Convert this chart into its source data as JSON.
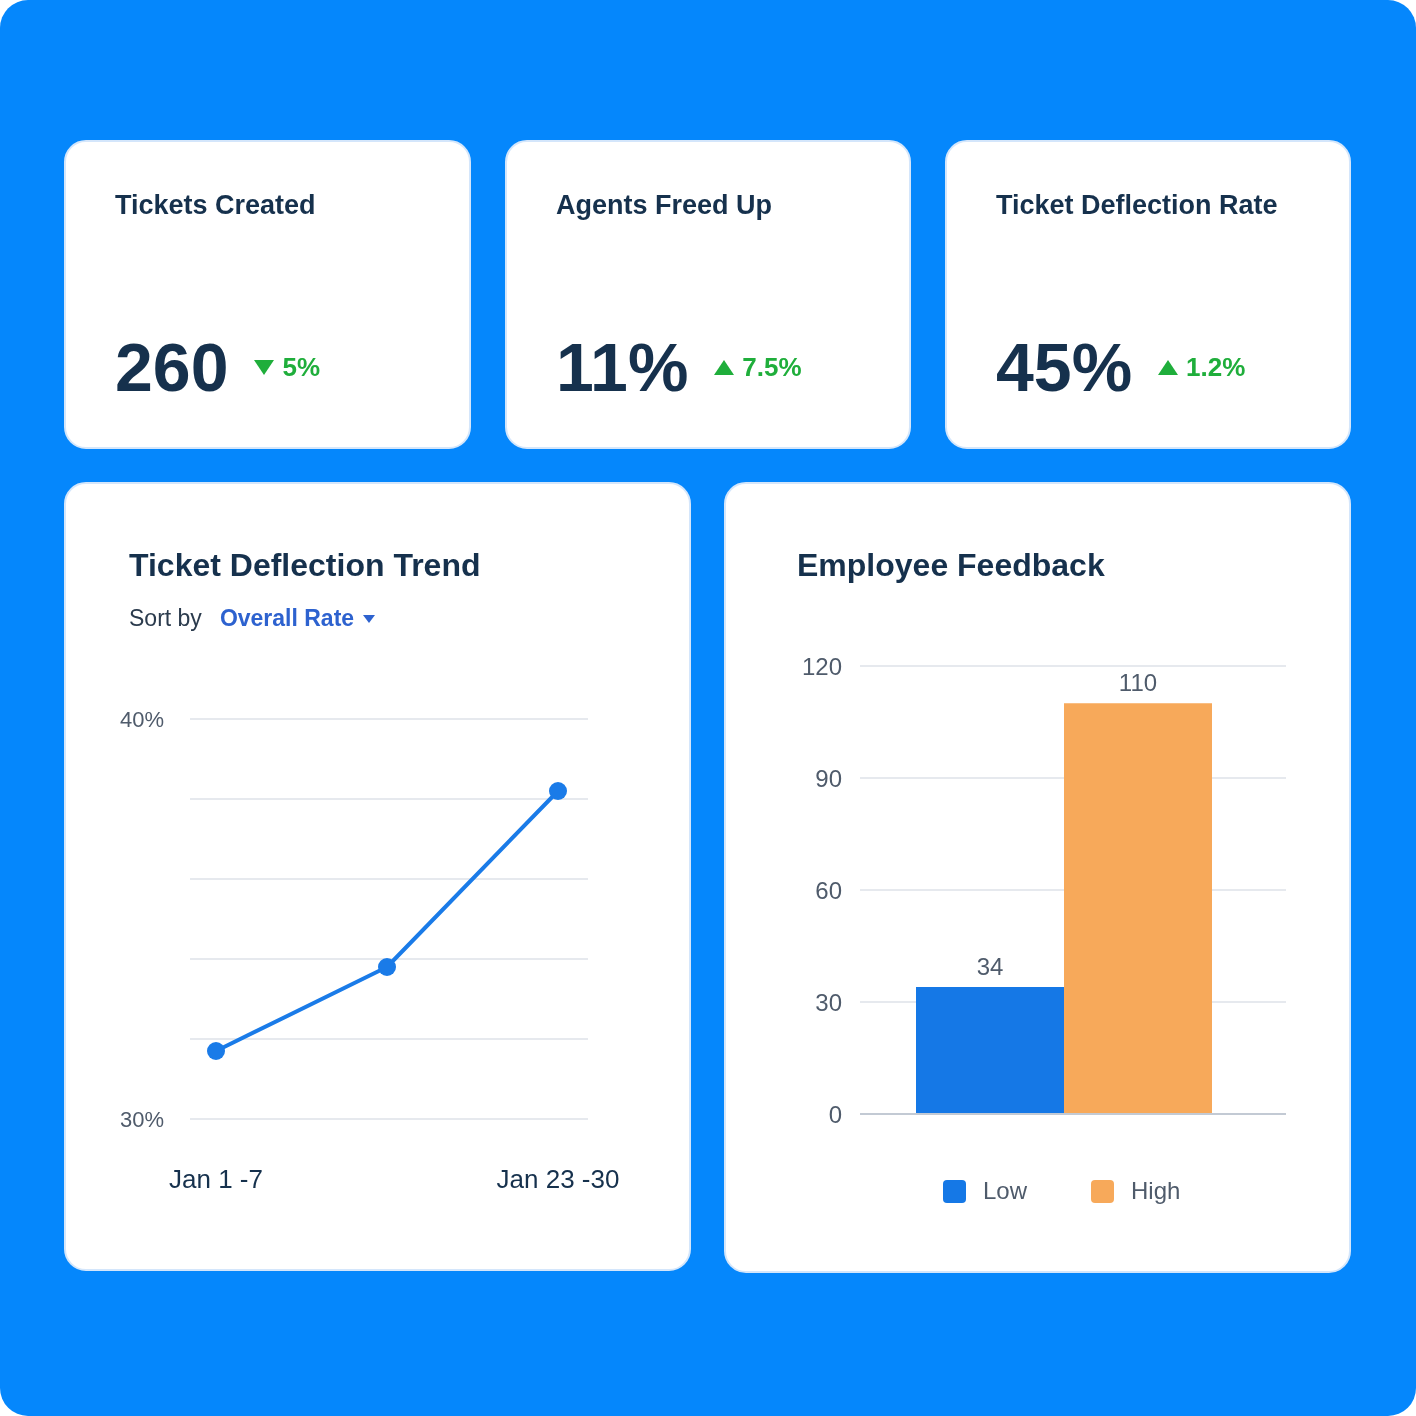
{
  "chart_data": [
    {
      "type": "other",
      "title": "Tickets Created",
      "annotations": [
        "260",
        "5%"
      ]
    },
    {
      "type": "other",
      "title": "Agents Freed Up",
      "annotations": [
        "11%",
        "7.5%"
      ]
    },
    {
      "type": "other",
      "title": "Ticket Deflection Rate",
      "annotations": [
        "45%",
        "1.2%"
      ]
    },
    {
      "type": "line",
      "title": "Ticket Deflection Trend",
      "subtitle": "Sort by",
      "annotations": [
        "Overall Rate"
      ],
      "categories": [
        "Jan 1 -7",
        null,
        "Jan 23 -30"
      ],
      "series": [
        {
          "color": "#1a7be8",
          "values": [
            31.7,
            33.8,
            38.2
          ]
        }
      ],
      "ylim": [
        30,
        40
      ],
      "yticks": [
        {
          "value": 30,
          "label": "30%"
        },
        {
          "value": 32,
          "label": null
        },
        {
          "value": 34,
          "label": null
        },
        {
          "value": 36,
          "label": null
        },
        {
          "value": 38,
          "label": null
        },
        {
          "value": 40,
          "label": "40%"
        }
      ],
      "grid": "y",
      "marker": "circle",
      "line_style": "solid"
    },
    {
      "type": "bar",
      "title": "Employee Feedback",
      "categories": [
        null
      ],
      "series": [
        {
          "name": "Low",
          "color": "#1578e6",
          "values": [
            34
          ]
        },
        {
          "name": "High",
          "color": "#f7a95a",
          "values": [
            110
          ]
        }
      ],
      "ylim": [
        0,
        120
      ],
      "yticks": [
        0,
        30,
        60,
        90,
        120
      ],
      "grid": "y",
      "data_labels": true,
      "legend": "bottom"
    }
  ]
}
